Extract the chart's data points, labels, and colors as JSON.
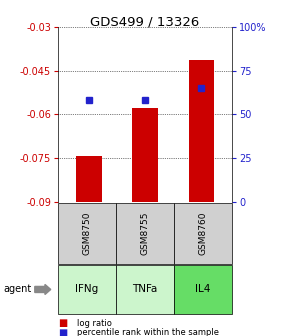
{
  "title": "GDS499 / 13326",
  "samples": [
    "GSM8750",
    "GSM8755",
    "GSM8760"
  ],
  "agents": [
    "IFNg",
    "TNFa",
    "IL4"
  ],
  "log_ratios": [
    -0.0745,
    -0.058,
    -0.0415
  ],
  "percentile_ranks": [
    58,
    58,
    65
  ],
  "ylim_left": [
    -0.09,
    -0.03
  ],
  "ylim_right": [
    0,
    100
  ],
  "yticks_left": [
    -0.09,
    -0.075,
    -0.06,
    -0.045,
    -0.03
  ],
  "yticks_right": [
    0,
    25,
    50,
    75,
    100
  ],
  "ytick_labels_left": [
    "-0.09",
    "-0.075",
    "-0.06",
    "-0.045",
    "-0.03"
  ],
  "ytick_labels_right": [
    "0",
    "25",
    "50",
    "75",
    "100%"
  ],
  "bar_color": "#cc0000",
  "dot_color": "#2222cc",
  "agent_colors": [
    "#ccf5cc",
    "#ccf5cc",
    "#66dd66"
  ],
  "sample_box_color": "#d0d0d0",
  "title_color": "#000000",
  "left_axis_color": "#cc0000",
  "right_axis_color": "#2222cc",
  "legend_bar_label": "log ratio",
  "legend_dot_label": "percentile rank within the sample"
}
